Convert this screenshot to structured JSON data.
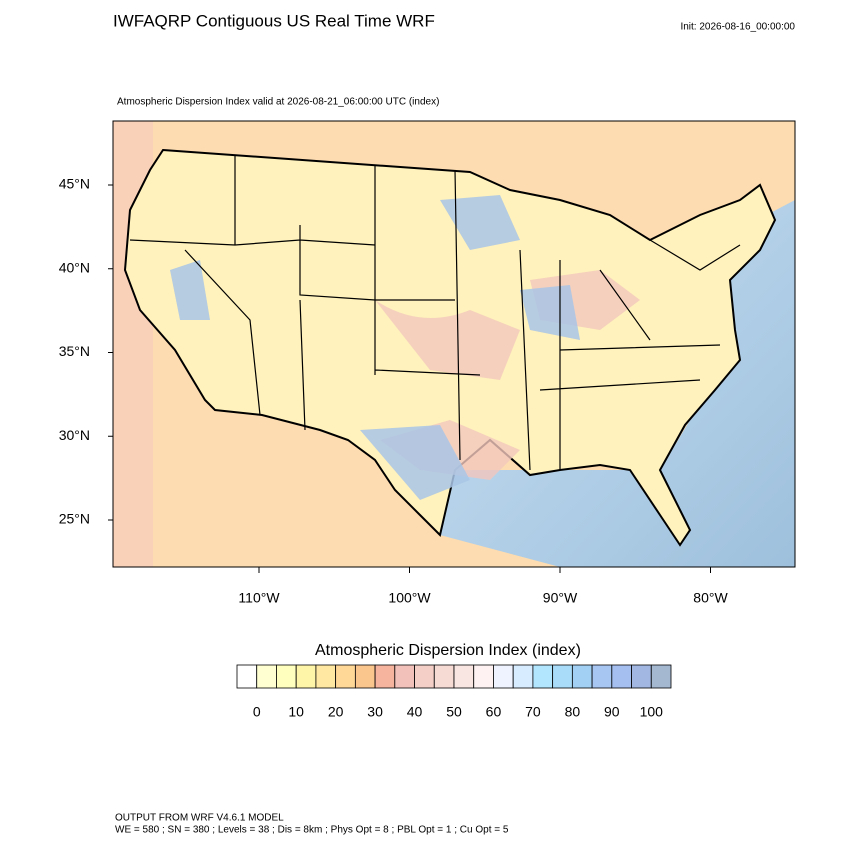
{
  "header": {
    "title": "IWFAQRP Contiguous US Real Time WRF",
    "init": "Init: 2026-08-16_00:00:00"
  },
  "map": {
    "subtitle": "Atmospheric Dispersion Index valid at 2026-08-21_06:00:00 UTC   (index)",
    "lat_ticks": [
      {
        "value": 45,
        "label": "45°N"
      },
      {
        "value": 40,
        "label": "40°N"
      },
      {
        "value": 35,
        "label": "35°N"
      },
      {
        "value": 30,
        "label": "30°N"
      },
      {
        "value": 25,
        "label": "25°N"
      }
    ],
    "lon_ticks": [
      {
        "value": -110,
        "label": "110°W"
      },
      {
        "value": -100,
        "label": "100°W"
      },
      {
        "value": -90,
        "label": "90°W"
      },
      {
        "value": -80,
        "label": "80°W"
      }
    ]
  },
  "colorbar": {
    "title": "Atmospheric Dispersion Index  (index)",
    "colors": [
      "#ffffff",
      "#ffffd2",
      "#ffffbe",
      "#fff5a8",
      "#ffe8a2",
      "#ffd898",
      "#fbc58e",
      "#f6b39e",
      "#f2c2ba",
      "#f4cfc8",
      "#f6dad4",
      "#f9e5e2",
      "#fff2f2",
      "#eef3ff",
      "#d8ecff",
      "#b2e6ff",
      "#a8dcf8",
      "#a2d0f4",
      "#a8c6f2",
      "#a4bff0",
      "#a2b8e2",
      "#a4b8d0"
    ],
    "ticks": [
      0,
      10,
      20,
      30,
      40,
      50,
      60,
      70,
      80,
      90,
      100
    ]
  },
  "footer": {
    "line1": "OUTPUT FROM WRF V4.6.1 MODEL",
    "line2": "WE = 580 ; SN = 380 ; Levels = 38 ; Dis = 8km ; Phys Opt = 8 ; PBL Opt = 1 ; Cu Opt = 5"
  }
}
